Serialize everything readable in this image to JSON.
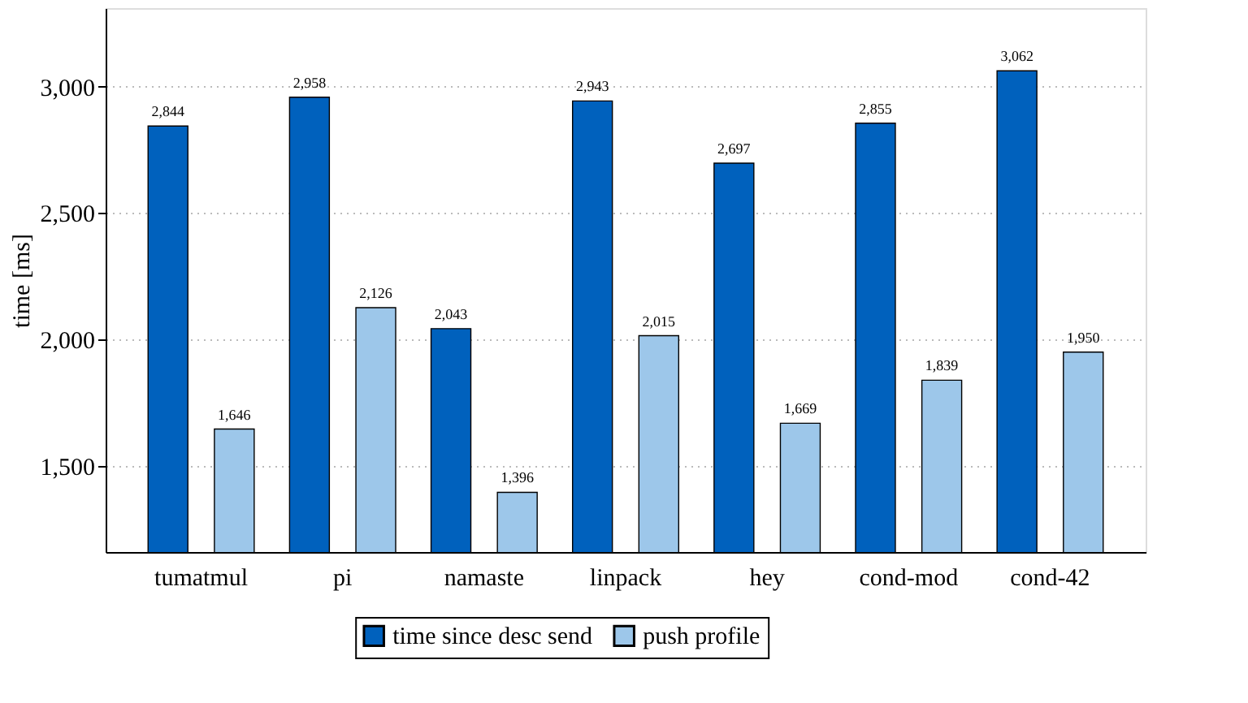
{
  "chart_data": {
    "type": "bar",
    "ylabel": "time [ms]",
    "categories": [
      "tumatmul",
      "pi",
      "namaste",
      "linpack",
      "hey",
      "cond-mod",
      "cond-42"
    ],
    "series": [
      {
        "name": "time since desc send",
        "color": "#0061bd",
        "values": [
          2844,
          2958,
          2043,
          2943,
          2697,
          2855,
          3062
        ],
        "value_labels": [
          "2,844",
          "2,958",
          "2,043",
          "2,943",
          "2,697",
          "2,855",
          "3,062"
        ]
      },
      {
        "name": "push profile",
        "color": "#9dc7ea",
        "values": [
          1646,
          2126,
          1396,
          2015,
          1669,
          1839,
          1950
        ],
        "value_labels": [
          "1,646",
          "2,126",
          "1,396",
          "2,015",
          "1,669",
          "1,839",
          "1,950"
        ]
      }
    ],
    "ylim": [
      1160,
      3310
    ],
    "yticks": [
      {
        "value": 1500,
        "label": "1,500"
      },
      {
        "value": 2000,
        "label": "2,000"
      },
      {
        "value": 2500,
        "label": "2,500"
      },
      {
        "value": 3000,
        "label": "3,000"
      }
    ],
    "grid": "y",
    "legend": "bottom"
  }
}
